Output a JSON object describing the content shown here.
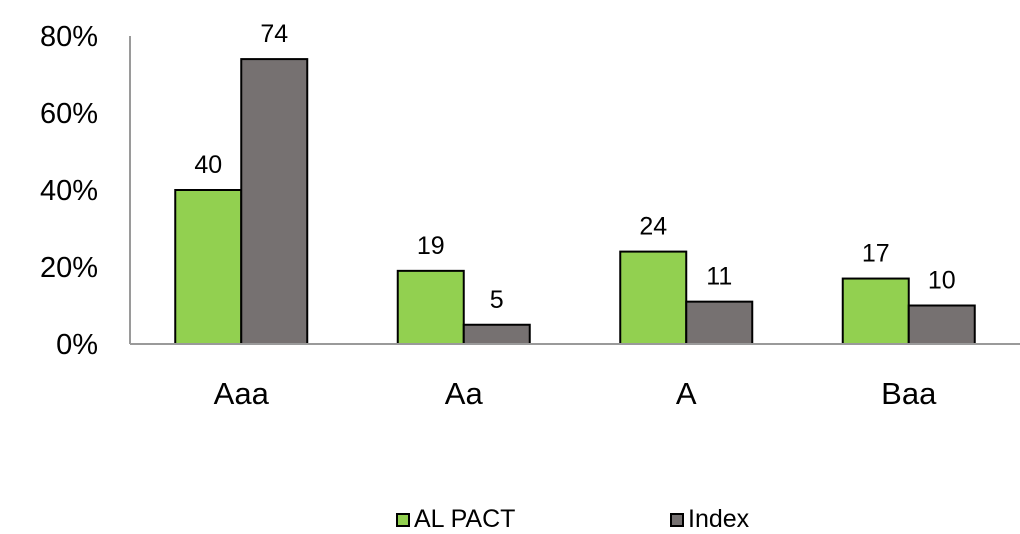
{
  "chart_data": {
    "type": "bar",
    "categories": [
      "Aaa",
      "Aa",
      "A",
      "Baa"
    ],
    "series": [
      {
        "name": "AL PACT",
        "values": [
          40,
          19,
          24,
          17
        ],
        "color": "#92d050"
      },
      {
        "name": "Index",
        "values": [
          74,
          5,
          11,
          10
        ],
        "color": "#767171"
      }
    ],
    "y_ticks": [
      "0%",
      "20%",
      "40%",
      "60%",
      "80%"
    ],
    "ylim": [
      0,
      80
    ],
    "grid": false,
    "legend_position": "bottom"
  }
}
